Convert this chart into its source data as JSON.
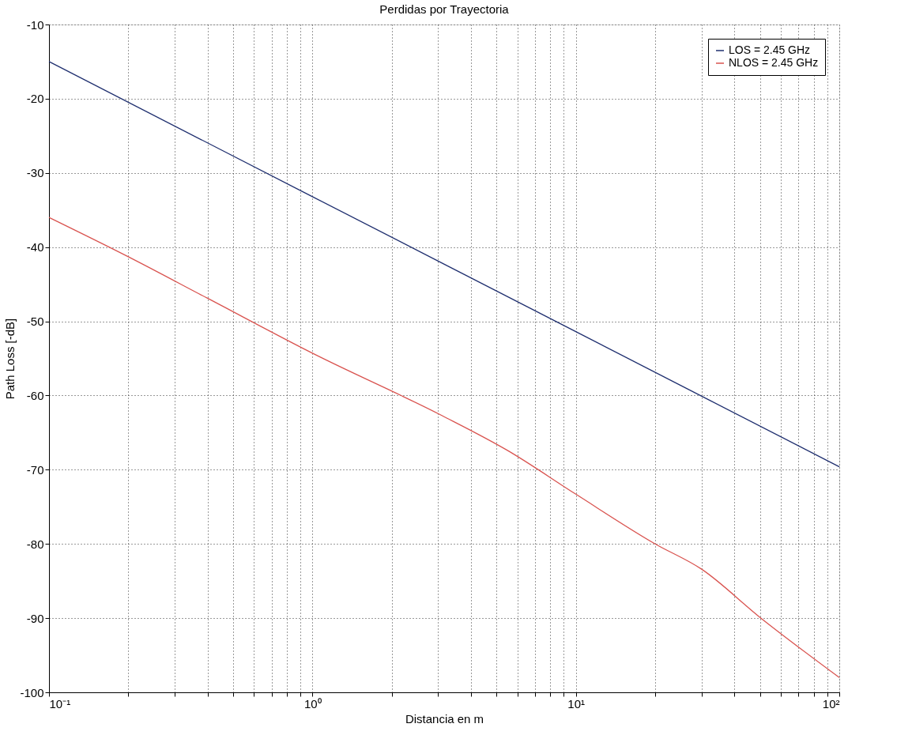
{
  "chart_data": {
    "type": "line",
    "title": "Perdidas por Trayectoria",
    "xlabel": "Distancia en m",
    "ylabel": "Path Loss [-dB]",
    "log": "x",
    "grid": true,
    "legend": "top right",
    "line_style": "solid",
    "marker": "none",
    "xlim": [
      0.1,
      100
    ],
    "ylim": [
      -100,
      -10
    ],
    "xticks": [
      {
        "value": 0.1,
        "label": "10⁻¹"
      },
      {
        "value": 0.2,
        "label": null
      },
      {
        "value": 0.3,
        "label": null
      },
      {
        "value": 0.4,
        "label": null
      },
      {
        "value": 0.5,
        "label": null
      },
      {
        "value": 0.6,
        "label": null
      },
      {
        "value": 0.7,
        "label": null
      },
      {
        "value": 0.8,
        "label": null
      },
      {
        "value": 0.9,
        "label": null
      },
      {
        "value": 1,
        "label": "10⁰"
      },
      {
        "value": 2,
        "label": null
      },
      {
        "value": 3,
        "label": null
      },
      {
        "value": 4,
        "label": null
      },
      {
        "value": 5,
        "label": null
      },
      {
        "value": 6,
        "label": null
      },
      {
        "value": 7,
        "label": null
      },
      {
        "value": 8,
        "label": null
      },
      {
        "value": 9,
        "label": null
      },
      {
        "value": 10,
        "label": "10¹"
      },
      {
        "value": 20,
        "label": null
      },
      {
        "value": 30,
        "label": null
      },
      {
        "value": 40,
        "label": null
      },
      {
        "value": 50,
        "label": null
      },
      {
        "value": 60,
        "label": null
      },
      {
        "value": 70,
        "label": null
      },
      {
        "value": 80,
        "label": null
      },
      {
        "value": 90,
        "label": null
      },
      {
        "value": 100,
        "label": "10²"
      }
    ],
    "yticks": [
      -100,
      -90,
      -80,
      -70,
      -60,
      -50,
      -40,
      -30,
      -20,
      -10
    ],
    "series": [
      {
        "name": "LOS = 2.45 GHz",
        "color": "#1f2f6f",
        "x": [
          0.1,
          1,
          10,
          100
        ],
        "values": [
          -15,
          -33.2,
          -51.4,
          -69.6
        ]
      },
      {
        "name": "NLOS = 2.45 GHz",
        "color": "#d9534f",
        "x": [
          0.1,
          0.2,
          0.4,
          1,
          3.1,
          5.5,
          10,
          20,
          30,
          50,
          100
        ],
        "values": [
          -36,
          -41.3,
          -46.9,
          -54.3,
          -62.7,
          -67.4,
          -73.3,
          -80,
          -83.4,
          -89.9,
          -98
        ]
      }
    ]
  }
}
